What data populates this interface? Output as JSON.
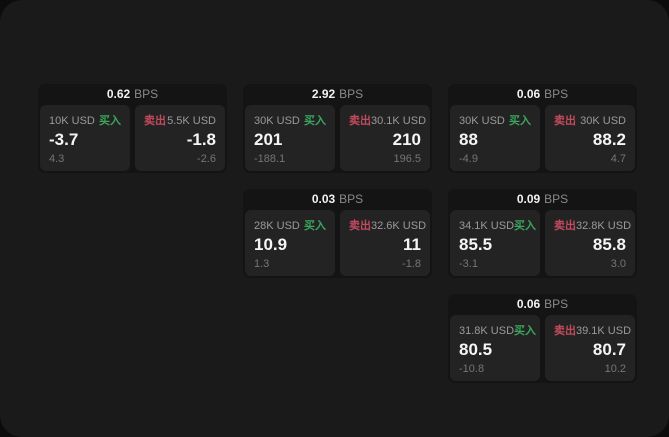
{
  "labels": {
    "bps": "BPS",
    "buy": "买入",
    "sell": "卖出"
  },
  "colors": {
    "page_bg": "#0c0c0c",
    "panel_bg": "#1a1a1a",
    "card_bg": "#141414",
    "tile_bg": "#232323",
    "buy": "#3ba55d",
    "sell": "#c24a5e"
  },
  "cards": [
    {
      "row": 1,
      "col": 1,
      "bps": "0.62",
      "buy": {
        "amount": "10K USD",
        "price": "-3.7",
        "delta": "4.3"
      },
      "sell": {
        "amount": "5.5K USD",
        "price": "-1.8",
        "delta": "-2.6"
      }
    },
    {
      "row": 1,
      "col": 2,
      "bps": "2.92",
      "buy": {
        "amount": "30K USD",
        "price": "201",
        "delta": "-188.1"
      },
      "sell": {
        "amount": "30.1K USD",
        "price": "210",
        "delta": "196.5"
      }
    },
    {
      "row": 1,
      "col": 3,
      "bps": "0.06",
      "buy": {
        "amount": "30K USD",
        "price": "88",
        "delta": "-4.9"
      },
      "sell": {
        "amount": "30K USD",
        "price": "88.2",
        "delta": "4.7"
      }
    },
    {
      "row": 2,
      "col": 2,
      "bps": "0.03",
      "buy": {
        "amount": "28K USD",
        "price": "10.9",
        "delta": "1.3"
      },
      "sell": {
        "amount": "32.6K USD",
        "price": "11",
        "delta": "-1.8"
      }
    },
    {
      "row": 2,
      "col": 3,
      "bps": "0.09",
      "buy": {
        "amount": "34.1K USD",
        "price": "85.5",
        "delta": "-3.1"
      },
      "sell": {
        "amount": "32.8K USD",
        "price": "85.8",
        "delta": "3.0"
      }
    },
    {
      "row": 3,
      "col": 3,
      "bps": "0.06",
      "buy": {
        "amount": "31.8K USD",
        "price": "80.5",
        "delta": "-10.8"
      },
      "sell": {
        "amount": "39.1K USD",
        "price": "80.7",
        "delta": "10.2"
      }
    }
  ]
}
